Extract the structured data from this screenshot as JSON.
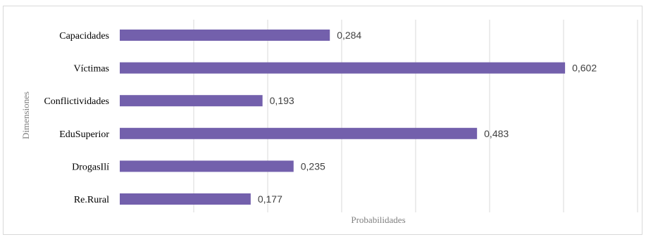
{
  "chart_data": {
    "type": "bar",
    "orientation": "horizontal",
    "categories": [
      "Capacidades",
      "Víctimas",
      "Conflictividades",
      "EduSuperior",
      "DrogasIlí",
      "Re.Rural"
    ],
    "values": [
      0.284,
      0.602,
      0.193,
      0.483,
      0.235,
      0.177
    ],
    "value_labels": [
      "0,284",
      "0,602",
      "0,193",
      "0,483",
      "0,235",
      "0,177"
    ],
    "title": "",
    "xlabel": "Probabilidades",
    "ylabel": "Dimensiones",
    "xlim": [
      0,
      0.7
    ],
    "grid": true,
    "legend": "none",
    "bar_color": "#7360AC",
    "grid_color": "#d9d9d9"
  }
}
